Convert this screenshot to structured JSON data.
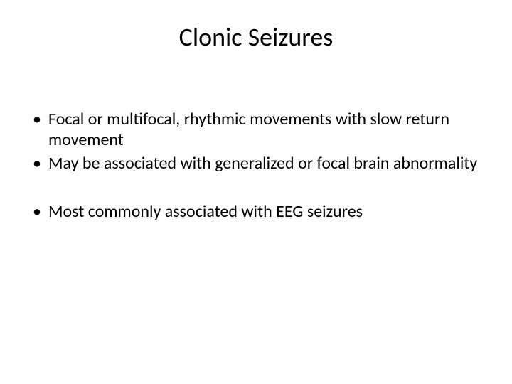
{
  "slide": {
    "title": "Clonic Seizures",
    "bullets": [
      "Focal or multifocal, rhythmic movements with slow return movement",
      "May be associated with generalized or focal brain abnormality",
      "Most commonly associated with EEG seizures"
    ],
    "styling": {
      "background_color": "#ffffff",
      "text_color": "#000000",
      "title_fontsize": 36,
      "body_fontsize": 24,
      "font_family": "Calibri",
      "bullet_marker": "•"
    }
  }
}
